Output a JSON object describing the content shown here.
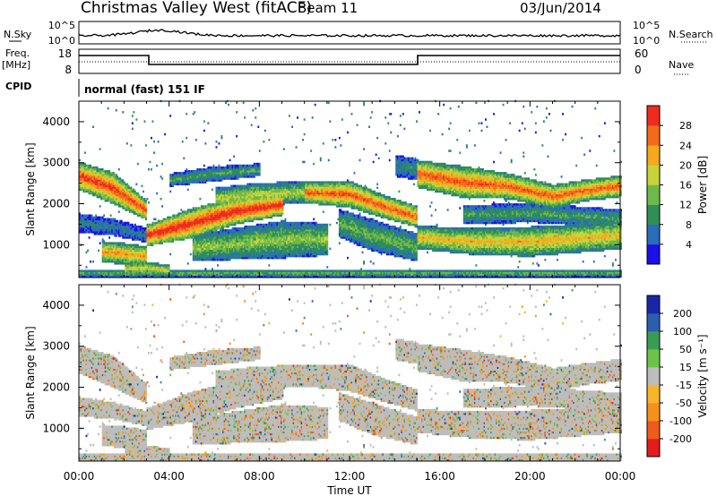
{
  "header": {
    "station": "Christmas Valley West (fitACF)",
    "beam": "Beam 11",
    "date": "03/Jun/2014"
  },
  "strips": {
    "nsky_label": "N.Sky",
    "nsky_ticks": [
      "10^5",
      "10^0"
    ],
    "nsearch_label": "N.Search",
    "nsearch_ticks": [
      "10^5",
      "10^0"
    ],
    "freq_label": "Freq.",
    "freq_unit": "[MHz]",
    "freq_ticks": [
      "18",
      "8"
    ],
    "nave_label": "Nave",
    "nave_ticks": [
      "60",
      "0"
    ],
    "cpid_label": "CPID",
    "cpid_text": "normal (fast) 151 IF"
  },
  "chart_data": [
    {
      "type": "heatmap",
      "panel": "power",
      "ylabel": "Slant Range [km]",
      "xlabel": "",
      "x_ticks": [
        "00:00",
        "04:00",
        "08:00",
        "12:00",
        "16:00",
        "20:00",
        "00:00"
      ],
      "y_ticks": [
        "1000",
        "2000",
        "3000",
        "4000"
      ],
      "xlim": [
        0,
        24
      ],
      "ylim": [
        200,
        4500
      ],
      "colorbar": {
        "label": "Power [dB]",
        "ticks": [
          "28",
          "24",
          "20",
          "16",
          "12",
          "8",
          "4"
        ],
        "levels": [
          0,
          4,
          8,
          12,
          16,
          20,
          24,
          28,
          32
        ],
        "colors": [
          "#1a10e8",
          "#2a6db8",
          "#2f8f57",
          "#6fb84a",
          "#c6d43a",
          "#f7a81c",
          "#f26b1d",
          "#ef2b20"
        ]
      },
      "bands": [
        {
          "t": [
            0.0,
            1.5,
            3.0
          ],
          "center": [
            2650,
            2350,
            1800
          ],
          "width": [
            260,
            300,
            180
          ],
          "peak": 30
        },
        {
          "t": [
            0.0,
            1.5,
            3.0
          ],
          "center": [
            1500,
            1400,
            1200
          ],
          "width": [
            180,
            160,
            140
          ],
          "peak": 8
        },
        {
          "t": [
            1.0,
            2.0,
            3.0
          ],
          "center": [
            800,
            750,
            700
          ],
          "width": [
            200,
            200,
            180
          ],
          "peak": 24
        },
        {
          "t": [
            2.0,
            3.0,
            4.0
          ],
          "center": [
            400,
            400,
            350
          ],
          "width": [
            120,
            120,
            100
          ],
          "peak": 20
        },
        {
          "t": [
            3.0,
            5.0,
            7.0,
            9.0
          ],
          "center": [
            1200,
            1500,
            1800,
            1950
          ],
          "width": [
            200,
            280,
            250,
            200
          ],
          "peak": 32
        },
        {
          "t": [
            4.0,
            6.0,
            8.0
          ],
          "center": [
            2550,
            2700,
            2800
          ],
          "width": [
            120,
            140,
            120
          ],
          "peak": 12
        },
        {
          "t": [
            5.0,
            7.0,
            9.0,
            11.0
          ],
          "center": [
            900,
            1000,
            1100,
            1100
          ],
          "width": [
            250,
            300,
            350,
            300
          ],
          "peak": 16
        },
        {
          "t": [
            6.0,
            8.0,
            10.0
          ],
          "center": [
            2100,
            2200,
            2250
          ],
          "width": [
            200,
            220,
            200
          ],
          "peak": 18
        },
        {
          "t": [
            10.0,
            12.0,
            13.5,
            15.0
          ],
          "center": [
            2250,
            2200,
            1900,
            1650
          ],
          "width": [
            200,
            250,
            220,
            200
          ],
          "peak": 28
        },
        {
          "t": [
            11.5,
            13.0,
            15.0
          ],
          "center": [
            1500,
            1200,
            900
          ],
          "width": [
            260,
            300,
            260
          ],
          "peak": 14
        },
        {
          "t": [
            14.0,
            15.0
          ],
          "center": [
            2900,
            2800
          ],
          "width": [
            200,
            200
          ],
          "peak": 10
        },
        {
          "t": [
            15.0,
            17.0,
            19.0,
            21.0,
            22.5,
            24.0
          ],
          "center": [
            2700,
            2500,
            2400,
            2150,
            2300,
            2400
          ],
          "width": [
            260,
            300,
            240,
            220,
            200,
            200
          ],
          "peak": 28
        },
        {
          "t": [
            15.0,
            17.5,
            20.0,
            24.0
          ],
          "center": [
            1150,
            1050,
            1050,
            1200
          ],
          "width": [
            220,
            250,
            280,
            260
          ],
          "peak": 22
        },
        {
          "t": [
            17.0,
            20.0,
            24.0
          ],
          "center": [
            1700,
            1750,
            1600
          ],
          "width": [
            180,
            180,
            180
          ],
          "peak": 12
        },
        {
          "t": [
            0.0,
            12.0,
            24.0
          ],
          "center": [
            280,
            280,
            280
          ],
          "width": [
            70,
            70,
            70
          ],
          "peak": 14
        }
      ]
    },
    {
      "type": "heatmap",
      "panel": "velocity",
      "ylabel": "Slant Range [km]",
      "xlabel": "Time UT",
      "x_ticks": [
        "00:00",
        "04:00",
        "08:00",
        "12:00",
        "16:00",
        "20:00",
        "00:00"
      ],
      "y_ticks": [
        "1000",
        "2000",
        "3000",
        "4000"
      ],
      "xlim": [
        0,
        24
      ],
      "ylim": [
        200,
        4500
      ],
      "colorbar": {
        "label": "Velocity [m s⁻¹]",
        "ticks": [
          "200",
          "100",
          "50",
          "15",
          "-15",
          "-50",
          "-100",
          "-200"
        ],
        "levels": [
          -250,
          -200,
          -100,
          -50,
          -15,
          15,
          50,
          100,
          200,
          250
        ],
        "colors": [
          "#e21c1c",
          "#ef5b1a",
          "#f6901c",
          "#f8b52a",
          "#bdbdbd",
          "#6cc34a",
          "#3a9b55",
          "#2a5fb0",
          "#1a26a8"
        ]
      }
    }
  ]
}
